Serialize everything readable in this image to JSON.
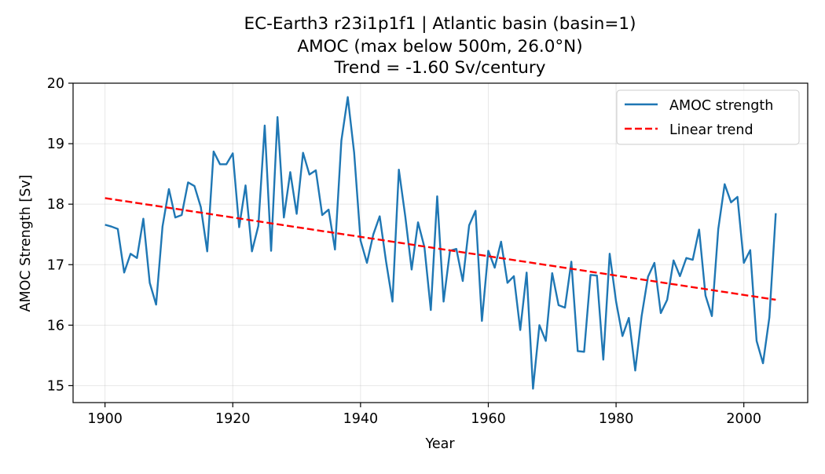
{
  "title_lines": [
    "EC-Earth3 r23i1p1f1 | Atlantic basin (basin=1)",
    "AMOC (max below 500m, 26.0°N)",
    "Trend = -1.60 Sv/century"
  ],
  "chart_data": {
    "type": "line",
    "xlabel": "Year",
    "ylabel": "AMOC Strength [Sv]",
    "xlim": [
      1895,
      2010
    ],
    "ylim": [
      14.72,
      20
    ],
    "xticks": [
      1900,
      1920,
      1940,
      1960,
      1980,
      2000
    ],
    "yticks": [
      15,
      16,
      17,
      18,
      19,
      20
    ],
    "grid": true,
    "legend_position": "top-right",
    "x": [
      1900,
      1901,
      1902,
      1903,
      1904,
      1905,
      1906,
      1907,
      1908,
      1909,
      1910,
      1911,
      1912,
      1913,
      1914,
      1915,
      1916,
      1917,
      1918,
      1919,
      1920,
      1921,
      1922,
      1923,
      1924,
      1925,
      1926,
      1927,
      1928,
      1929,
      1930,
      1931,
      1932,
      1933,
      1934,
      1935,
      1936,
      1937,
      1938,
      1939,
      1940,
      1941,
      1942,
      1943,
      1944,
      1945,
      1946,
      1947,
      1948,
      1949,
      1950,
      1951,
      1952,
      1953,
      1954,
      1955,
      1956,
      1957,
      1958,
      1959,
      1960,
      1961,
      1962,
      1963,
      1964,
      1965,
      1966,
      1967,
      1968,
      1969,
      1970,
      1971,
      1972,
      1973,
      1974,
      1975,
      1976,
      1977,
      1978,
      1979,
      1980,
      1981,
      1982,
      1983,
      1984,
      1985,
      1986,
      1987,
      1988,
      1989,
      1990,
      1991,
      1992,
      1993,
      1994,
      1995,
      1996,
      1997,
      1998,
      1999,
      2000,
      2001,
      2002,
      2003,
      2004,
      2005
    ],
    "series": [
      {
        "name": "AMOC strength",
        "color": "#1f77b4",
        "style": "solid",
        "values": [
          17.66,
          17.63,
          17.59,
          16.87,
          17.18,
          17.11,
          17.76,
          16.7,
          16.34,
          17.63,
          18.25,
          17.78,
          17.82,
          18.36,
          18.3,
          17.95,
          17.22,
          18.87,
          18.66,
          18.66,
          18.84,
          17.62,
          18.31,
          17.22,
          17.64,
          19.3,
          17.23,
          19.44,
          17.78,
          18.53,
          17.84,
          18.85,
          18.49,
          18.56,
          17.82,
          17.91,
          17.25,
          19.05,
          19.77,
          18.85,
          17.4,
          17.03,
          17.5,
          17.8,
          17.05,
          16.39,
          18.57,
          17.8,
          16.92,
          17.7,
          17.29,
          16.25,
          18.13,
          16.39,
          17.23,
          17.26,
          16.73,
          17.65,
          17.89,
          16.07,
          17.23,
          16.95,
          17.38,
          16.7,
          16.81,
          15.92,
          16.87,
          14.95,
          16.0,
          15.74,
          16.86,
          16.33,
          16.29,
          17.05,
          15.57,
          15.56,
          16.83,
          16.82,
          15.43,
          17.18,
          16.39,
          15.82,
          16.12,
          15.25,
          16.15,
          16.8,
          17.03,
          16.2,
          16.42,
          17.07,
          16.81,
          17.11,
          17.08,
          17.58,
          16.49,
          16.15,
          17.59,
          18.33,
          18.03,
          18.12,
          17.03,
          17.24,
          15.74,
          15.37,
          16.13,
          17.85
        ]
      },
      {
        "name": "Linear trend",
        "color": "#ff0000",
        "style": "dashed",
        "values_endpoints": [
          18.1,
          16.42
        ]
      }
    ]
  }
}
